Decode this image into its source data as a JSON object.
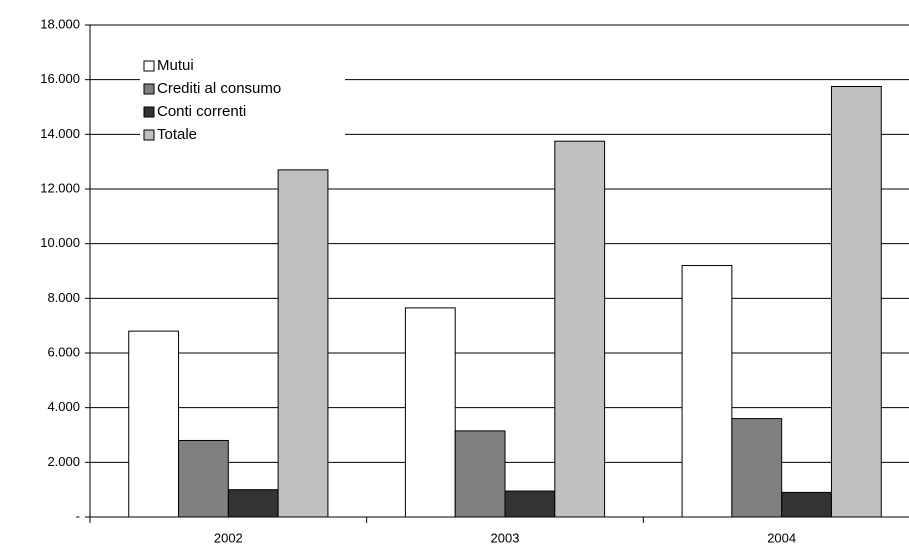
{
  "chart_data": {
    "type": "bar",
    "categories": [
      "2002",
      "2003",
      "2004"
    ],
    "series": [
      {
        "name": "Mutui",
        "color": "#ffffff",
        "values": [
          6800,
          7650,
          9200
        ]
      },
      {
        "name": "Crediti al consumo",
        "color": "#808080",
        "values": [
          2800,
          3150,
          3600
        ]
      },
      {
        "name": "Conti correnti",
        "color": "#333333",
        "values": [
          1000,
          950,
          900
        ]
      },
      {
        "name": "Totale",
        "color": "#c0c0c0",
        "values": [
          12700,
          13750,
          15750
        ]
      }
    ],
    "ylim": [
      0,
      18000
    ],
    "yticks": [
      {
        "value": 0,
        "label": "-"
      },
      {
        "value": 2000,
        "label": "2.000"
      },
      {
        "value": 4000,
        "label": "4.000"
      },
      {
        "value": 6000,
        "label": "6.000"
      },
      {
        "value": 8000,
        "label": "8.000"
      },
      {
        "value": 10000,
        "label": "10.000"
      },
      {
        "value": 12000,
        "label": "12.000"
      },
      {
        "value": 14000,
        "label": "14.000"
      },
      {
        "value": 16000,
        "label": "16.000"
      },
      {
        "value": 18000,
        "label": "18.000"
      }
    ],
    "grid": true,
    "legend": "upper left"
  }
}
